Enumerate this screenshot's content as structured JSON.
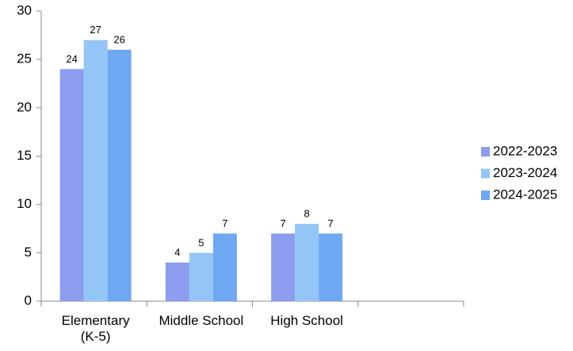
{
  "chart_data": {
    "type": "bar",
    "categories": [
      "Elementary\n(K-5)",
      "Middle School",
      "High School",
      null
    ],
    "series": [
      {
        "name": "2022-2023",
        "color": "#8c9cef",
        "values": [
          24,
          4,
          7,
          null
        ]
      },
      {
        "name": "2023-2024",
        "color": "#93c6f6",
        "values": [
          27,
          5,
          8,
          null
        ]
      },
      {
        "name": "2024-2025",
        "color": "#6ea8f2",
        "values": [
          26,
          7,
          7,
          null
        ]
      }
    ],
    "ylim": [
      0,
      30
    ],
    "yticks": [
      0,
      5,
      10,
      15,
      20,
      25,
      30
    ],
    "grid": false,
    "legend": "right"
  }
}
